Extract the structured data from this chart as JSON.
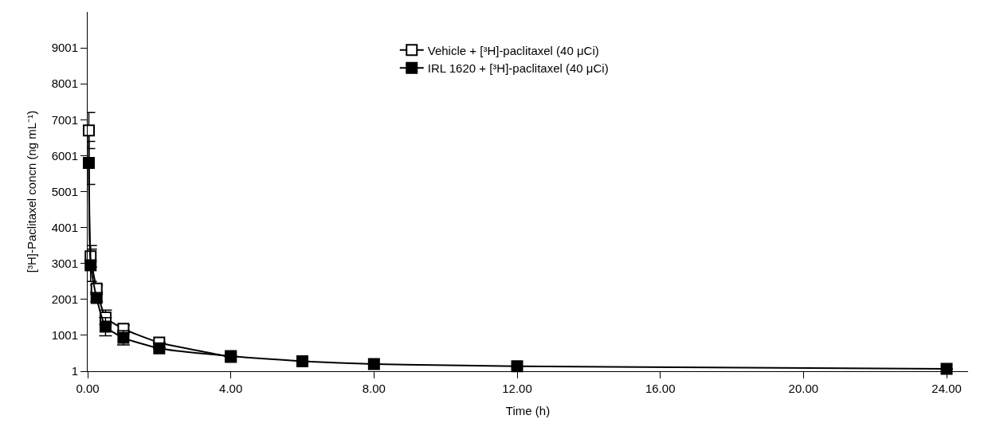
{
  "chart_data": {
    "type": "line",
    "xlabel": "Time (h)",
    "ylabel": "[³H]-Paclitaxel concn (ng mL⁻¹)",
    "x": [
      0.033,
      0.083,
      0.25,
      0.5,
      1,
      2,
      4,
      6,
      8,
      12,
      24
    ],
    "series": [
      {
        "name": "Vehicle + [³H]-paclitaxel (40 μCi)",
        "color": "#000000",
        "marker": "square-open",
        "values": [
          6700,
          3200,
          2300,
          1500,
          1180,
          800,
          400,
          null,
          null,
          null,
          null
        ],
        "errors": [
          500,
          300,
          100,
          200,
          100,
          null,
          null,
          null,
          null,
          null,
          null
        ]
      },
      {
        "name": "IRL 1620 + [³H]-paclitaxel (40 μCi)",
        "color": "#000000",
        "marker": "square",
        "values": [
          5800,
          2950,
          2040,
          1240,
          930,
          640,
          420,
          280,
          200,
          140,
          70
        ],
        "errors": [
          600,
          450,
          100,
          250,
          200,
          null,
          null,
          null,
          null,
          null,
          null
        ]
      }
    ],
    "xlim": [
      0,
      24.6
    ],
    "xticks": [
      {
        "value": 0,
        "label": "0.00"
      },
      {
        "value": 4,
        "label": "4.00"
      },
      {
        "value": 8,
        "label": "8.00"
      },
      {
        "value": 12,
        "label": "12.00"
      },
      {
        "value": 16,
        "label": "16.00"
      },
      {
        "value": 20,
        "label": "20.00"
      },
      {
        "value": 24,
        "label": "24.00"
      }
    ],
    "ylim": [
      1,
      10000
    ],
    "yticks": [
      1,
      1001,
      2001,
      3001,
      4001,
      5001,
      6001,
      7001,
      8001,
      9001
    ],
    "legend": "top",
    "line_style": "solid"
  }
}
